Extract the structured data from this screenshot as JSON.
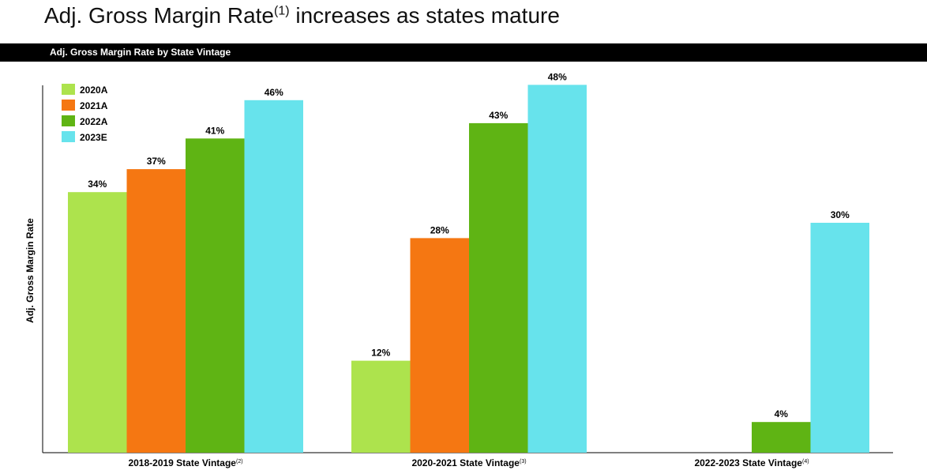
{
  "page": {
    "title": "Adj. Gross Margin Rate",
    "title_sup": "(1)",
    "title_rest": " increases as states mature",
    "banner": "Adj. Gross Margin Rate by State Vintage"
  },
  "chart_data": {
    "type": "bar",
    "title": "Adj. Gross Margin Rate by State Vintage",
    "xlabel": "",
    "ylabel": "Adj. Gross Margin Rate",
    "ylim": [
      0,
      50
    ],
    "grid": false,
    "legend_position": "top-left",
    "categories": [
      {
        "label": "2018-2019 State Vintage",
        "note": "(2)"
      },
      {
        "label": "2020-2021 State Vintage",
        "note": "(3)"
      },
      {
        "label": "2022-2023 State Vintage",
        "note": "(4)"
      }
    ],
    "series": [
      {
        "name": "2020A",
        "color": "#ADE34D",
        "values": [
          34,
          12,
          null
        ],
        "labels": [
          "34%",
          "12%",
          ""
        ]
      },
      {
        "name": "2021A",
        "color": "#F57712",
        "values": [
          37,
          28,
          null
        ],
        "labels": [
          "37%",
          "28%",
          ""
        ]
      },
      {
        "name": "2022A",
        "color": "#5FB414",
        "values": [
          41,
          43,
          4
        ],
        "labels": [
          "41%",
          "43%",
          "4%"
        ]
      },
      {
        "name": "2023E",
        "color": "#67E3EC",
        "values": [
          46,
          48,
          30
        ],
        "labels": [
          "46%",
          "48%",
          "30%"
        ]
      }
    ]
  }
}
